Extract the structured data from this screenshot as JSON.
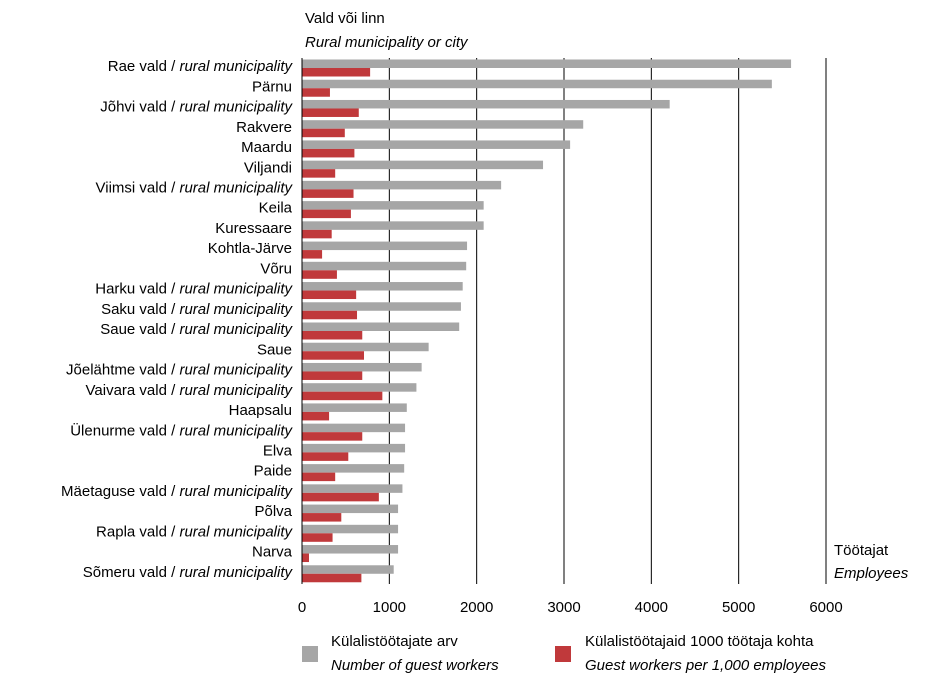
{
  "chart_data": {
    "type": "bar",
    "orientation": "horizontal",
    "category_axis_title": "Vald või linn",
    "category_axis_title_en": "Rural municipality or city",
    "value_axis_title": "Töötajat",
    "value_axis_title_en": "Employees",
    "xlim": [
      0,
      6000
    ],
    "xticks": [
      "0",
      "1000",
      "2000",
      "3000",
      "4000",
      "5000",
      "6000"
    ],
    "grid": "vertical",
    "legend_position": "bottom",
    "categories": [
      {
        "name": "Rae vald",
        "sep": " / ",
        "en": "rural municipality"
      },
      {
        "name": "Pärnu",
        "sep": "",
        "en": ""
      },
      {
        "name": "Jõhvi vald",
        "sep": " / ",
        "en": "rural municipality"
      },
      {
        "name": "Rakvere",
        "sep": "",
        "en": ""
      },
      {
        "name": "Maardu",
        "sep": "",
        "en": ""
      },
      {
        "name": "Viljandi",
        "sep": "",
        "en": ""
      },
      {
        "name": "Viimsi vald",
        "sep": " / ",
        "en": "rural municipality"
      },
      {
        "name": "Keila",
        "sep": "",
        "en": ""
      },
      {
        "name": "Kuressaare",
        "sep": "",
        "en": ""
      },
      {
        "name": "Kohtla-Järve",
        "sep": "",
        "en": ""
      },
      {
        "name": "Võru",
        "sep": "",
        "en": ""
      },
      {
        "name": "Harku vald",
        "sep": " / ",
        "en": "rural municipality"
      },
      {
        "name": "Saku vald",
        "sep": " / ",
        "en": "rural municipality"
      },
      {
        "name": "Saue vald",
        "sep": " / ",
        "en": "rural municipality"
      },
      {
        "name": "Saue",
        "sep": "",
        "en": ""
      },
      {
        "name": "Jõelähtme vald",
        "sep": " / ",
        "en": "rural municipality"
      },
      {
        "name": "Vaivara vald",
        "sep": " / ",
        "en": "rural municipality"
      },
      {
        "name": "Haapsalu",
        "sep": "",
        "en": ""
      },
      {
        "name": "Ülenurme vald",
        "sep": " / ",
        "en": "rural municipality"
      },
      {
        "name": "Elva",
        "sep": "",
        "en": ""
      },
      {
        "name": "Paide",
        "sep": "",
        "en": ""
      },
      {
        "name": "Mäetaguse vald",
        "sep": " / ",
        "en": "rural municipality"
      },
      {
        "name": "Põlva",
        "sep": "",
        "en": ""
      },
      {
        "name": "Rapla vald",
        "sep": " / ",
        "en": "rural municipality"
      },
      {
        "name": "Narva",
        "sep": "",
        "en": ""
      },
      {
        "name": "Sõmeru vald",
        "sep": " / ",
        "en": "rural municipality"
      }
    ],
    "series": [
      {
        "name": "Külalistöötajate arv",
        "name_en": "Number of guest workers",
        "color": "#a6a6a6",
        "values": [
          5600,
          5380,
          4210,
          3220,
          3070,
          2760,
          2280,
          2080,
          2080,
          1890,
          1880,
          1840,
          1820,
          1800,
          1450,
          1370,
          1310,
          1200,
          1180,
          1180,
          1170,
          1150,
          1100,
          1100,
          1100,
          1050
        ]
      },
      {
        "name": "Külalistöötajaid 1000 töötaja kohta",
        "name_en": "Guest workers per 1,000 employees",
        "color": "#c0393b",
        "values": [
          780,
          320,
          650,
          490,
          600,
          380,
          590,
          560,
          340,
          230,
          400,
          620,
          630,
          690,
          710,
          690,
          920,
          310,
          690,
          530,
          380,
          880,
          450,
          350,
          80,
          680
        ]
      }
    ]
  }
}
